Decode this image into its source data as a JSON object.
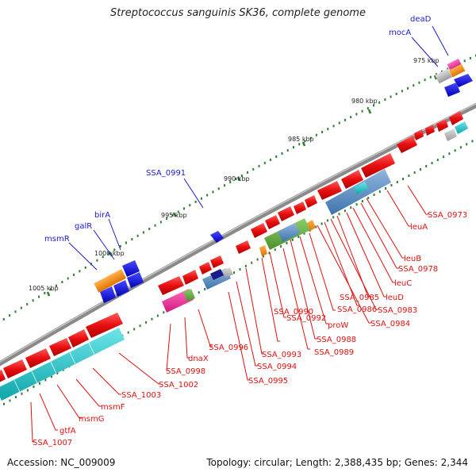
{
  "title": "Streptococcus sanguinis SK36, complete genome",
  "accession": "Accession: NC_009009",
  "topology": "Topology: circular; Length: 2,388,435 bp; Genes: 2,344",
  "colors": {
    "backbone": "#9a9a9a",
    "tick": "#2e7d32",
    "forward_label": "#1a1ad0",
    "reverse_label": "#e01010",
    "gene_red": "#ee1111",
    "gene_blue": "#1010dd",
    "gene_orange": "#f08a10",
    "gene_cyan": "#19c3c8"
  },
  "tick_labels": [
    "975 kbp",
    "980 kbp",
    "985 kbp",
    "990 kbp",
    "995 kbp",
    "1000 kbp",
    "1005 kbp"
  ],
  "forward_labels": [
    "deaD",
    "mocA",
    "SSA_0991",
    "birA",
    "galR",
    "msmR"
  ],
  "reverse_labels": [
    "SSA_0973",
    "leuA",
    "leuB",
    "SSA_0978",
    "leuC",
    "leuD",
    "SSA_0985",
    "SSA_0983",
    "SSA_0986",
    "SSA_0984",
    "SSA_0990",
    "proW",
    "SSA_0988",
    "SSA_0992",
    "SSA_0989",
    "SSA_0993",
    "SSA_0994",
    "SSA_0995",
    "SSA_0996",
    "dnaX",
    "SSA_0998",
    "SSA_1002",
    "SSA_1003",
    "msmF",
    "msmG",
    "gtfA",
    "SSA_1007"
  ]
}
